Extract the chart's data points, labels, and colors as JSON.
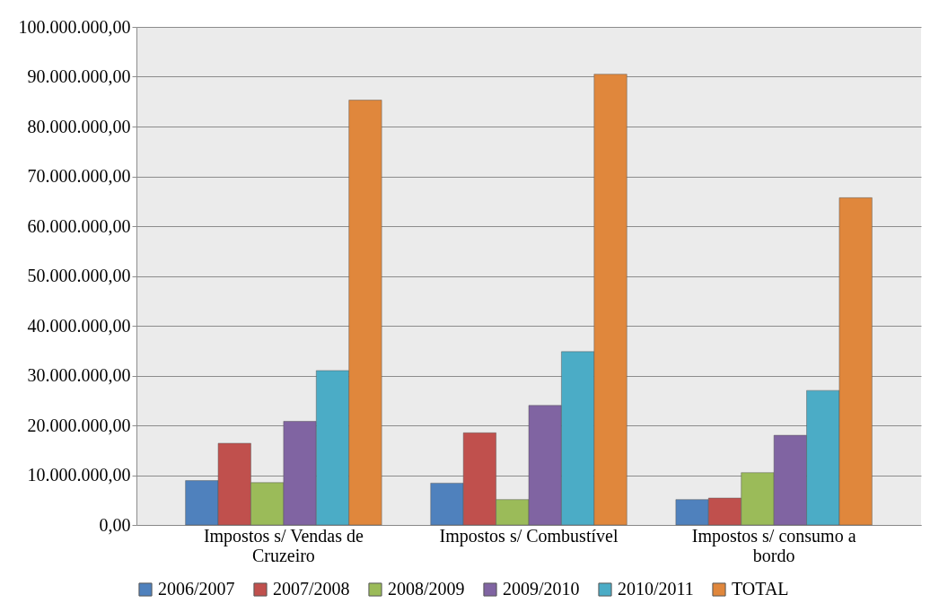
{
  "chart_data": {
    "type": "bar",
    "categories": [
      "Impostos s/ Vendas de Cruzeiro",
      "Impostos s/ Combustível",
      "Impostos s/ consumo a bordo"
    ],
    "series": [
      {
        "name": "2006/2007",
        "color": "#4f81bd",
        "values": [
          8900000,
          8400000,
          5100000
        ]
      },
      {
        "name": "2007/2008",
        "color": "#c0504d",
        "values": [
          16400000,
          18500000,
          5400000
        ]
      },
      {
        "name": "2008/2009",
        "color": "#9bbb59",
        "values": [
          8500000,
          5100000,
          10500000
        ]
      },
      {
        "name": "2009/2010",
        "color": "#8064a2",
        "values": [
          20800000,
          24000000,
          18000000
        ]
      },
      {
        "name": "2010/2011",
        "color": "#4bacc6",
        "values": [
          31000000,
          34800000,
          27000000
        ]
      },
      {
        "name": "TOTAL",
        "color": "#e0873c",
        "values": [
          85300000,
          90500000,
          65700000
        ]
      }
    ],
    "ylim": [
      0,
      100000000
    ],
    "yticks": [
      {
        "value": 0,
        "label": "0,00"
      },
      {
        "value": 10000000,
        "label": "10.000.000,00"
      },
      {
        "value": 20000000,
        "label": "20.000.000,00"
      },
      {
        "value": 30000000,
        "label": "30.000.000,00"
      },
      {
        "value": 40000000,
        "label": "40.000.000,00"
      },
      {
        "value": 50000000,
        "label": "50.000.000,00"
      },
      {
        "value": 60000000,
        "label": "60.000.000,00"
      },
      {
        "value": 70000000,
        "label": "70.000.000,00"
      },
      {
        "value": 80000000,
        "label": "80.000.000,00"
      },
      {
        "value": 90000000,
        "label": "90.000.000,00"
      },
      {
        "value": 100000000,
        "label": "100.000.000,00"
      }
    ],
    "grid": "y",
    "legend": "bottom"
  }
}
